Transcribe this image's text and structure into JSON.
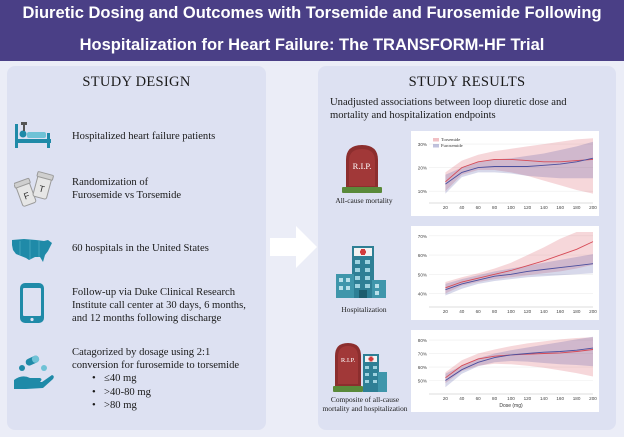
{
  "header": {
    "title_line1": "Diuretic Dosing and Outcomes with Torsemide and Furosemide Following",
    "title_line2": "Hospitalization for Heart Failure: The TRANSFORM-HF Trial"
  },
  "study_design": {
    "title": "STUDY DESIGN",
    "items": [
      {
        "icon": "hospital-bed-icon",
        "lines": [
          "Hospitalized heart failure patients"
        ]
      },
      {
        "icon": "pill-bottles-icon",
        "lines": [
          "Randomization of",
          "Furosemide vs Torsemide"
        ]
      },
      {
        "icon": "us-map-icon",
        "lines": [
          "60 hospitals in the United States"
        ]
      },
      {
        "icon": "smartphone-icon",
        "lines": [
          "Follow-up via Duke Clinical Research",
          "Institute call center at 30 days, 6 months,",
          "and 12 months following discharge"
        ]
      },
      {
        "icon": "hand-pills-icon",
        "lines": [
          "Catagorized by dosage using 2:1",
          "conversion for furosemide to torsemide"
        ]
      }
    ],
    "bullets": [
      "≤40 mg",
      ">40-80 mg",
      ">80 mg"
    ],
    "pill_labels": [
      "F",
      "T"
    ]
  },
  "study_results": {
    "title": "STUDY RESULTS",
    "subtitle_lines": [
      "Unadjusted associations between loop diuretic dose and",
      "mortality and hospitalization endpoints"
    ],
    "rip_text": "R.I.P.",
    "panel_labels": {
      "mortality": [
        "All-cause mortality"
      ],
      "hospitalization": [
        "Hospitalization"
      ],
      "composite": [
        "Composite of all-cause",
        "mortality and hospitalization"
      ]
    }
  },
  "colors": {
    "header_bg": "#4a3f86",
    "panel_bg": "#dde1f2",
    "torsemide": "#d64b57",
    "furosemide": "#4b4f9e",
    "icon_teal": "#1f8aa8"
  },
  "chart_data": [
    {
      "type": "line",
      "title": "All-cause mortality",
      "legend": [
        "Torsemide",
        "Furosemide"
      ],
      "legend_position": "top-left",
      "x": [
        20,
        40,
        60,
        80,
        100,
        120,
        140,
        160,
        180,
        200
      ],
      "xticks": [
        "20",
        "40",
        "60",
        "80",
        "100",
        "120",
        "140",
        "160",
        "180",
        "200"
      ],
      "xlim": [
        0,
        200
      ],
      "yticks": [
        "10%",
        "20%",
        "30%"
      ],
      "ylim": [
        5,
        33
      ],
      "series": [
        {
          "name": "Torsemide",
          "values": [
            14,
            20,
            22.5,
            23.5,
            23.5,
            23,
            22.5,
            22.5,
            23,
            23.5
          ],
          "lower": [
            10,
            17,
            19,
            19,
            18,
            16.5,
            14.5,
            12.5,
            10.5,
            9
          ],
          "upper": [
            18,
            23,
            25.5,
            27,
            28,
            29,
            30,
            31,
            32,
            32.5
          ]
        },
        {
          "name": "Furosemide",
          "values": [
            13,
            18,
            20,
            20.5,
            20.5,
            20.5,
            21,
            21.5,
            22.5,
            24
          ],
          "lower": [
            9,
            16,
            18,
            18,
            17.5,
            16.5,
            16,
            15.5,
            15.5,
            15.5
          ],
          "upper": [
            17,
            20,
            22.5,
            23.5,
            24,
            25,
            26,
            27.5,
            29,
            31
          ]
        }
      ]
    },
    {
      "type": "line",
      "title": "Hospitalization",
      "x": [
        20,
        40,
        60,
        80,
        100,
        120,
        140,
        160,
        180,
        200
      ],
      "xticks": [
        "20",
        "40",
        "60",
        "80",
        "100",
        "120",
        "140",
        "160",
        "180",
        "200"
      ],
      "xlim": [
        0,
        200
      ],
      "yticks": [
        "40%",
        "50%",
        "60%",
        "70%"
      ],
      "ylim": [
        33,
        72
      ],
      "series": [
        {
          "name": "Torsemide",
          "values": [
            43,
            46,
            48,
            50,
            52,
            54.5,
            57,
            60,
            63,
            67
          ],
          "lower": [
            40,
            44,
            46,
            47.5,
            48.5,
            49.5,
            50.5,
            51.5,
            53,
            55
          ],
          "upper": [
            46,
            48.5,
            50.5,
            53,
            56,
            60,
            64,
            68.5,
            72,
            72
          ]
        },
        {
          "name": "Furosemide",
          "values": [
            42,
            45,
            47,
            49,
            50,
            51.5,
            52.5,
            53.5,
            54.5,
            55.5
          ],
          "lower": [
            39,
            42.5,
            45,
            46.5,
            47.5,
            48.5,
            49,
            49.5,
            50,
            50.5
          ],
          "upper": [
            45,
            47.5,
            49.5,
            51.5,
            53,
            54.5,
            56,
            57.5,
            59,
            60.5
          ]
        }
      ]
    },
    {
      "type": "line",
      "title": "Composite of all-cause mortality and hospitalization",
      "x": [
        20,
        40,
        60,
        80,
        100,
        120,
        140,
        160,
        180,
        200
      ],
      "xticks": [
        "20",
        "40",
        "60",
        "80",
        "100",
        "120",
        "140",
        "160",
        "180",
        "200"
      ],
      "xlabel": "Dose (mg)",
      "xlim": [
        0,
        200
      ],
      "yticks": [
        "50%",
        "60%",
        "70%",
        "80%"
      ],
      "ylim": [
        40,
        83
      ],
      "series": [
        {
          "name": "Torsemide",
          "values": [
            52,
            61,
            66,
            68,
            69,
            69.5,
            70,
            70.5,
            71.5,
            73
          ],
          "lower": [
            48,
            57,
            61,
            62.5,
            62,
            61,
            59.5,
            57.5,
            55.5,
            53
          ],
          "upper": [
            56,
            65,
            70,
            73,
            75.5,
            77.5,
            79,
            80.5,
            81.5,
            82
          ]
        },
        {
          "name": "Furosemide",
          "values": [
            50,
            58,
            63.5,
            67,
            69,
            70,
            71,
            71.5,
            72.5,
            74
          ],
          "lower": [
            45,
            55,
            60.5,
            63.5,
            64.5,
            64,
            63,
            62,
            61.5,
            60.5
          ],
          "upper": [
            55,
            61,
            66.5,
            70,
            72.5,
            74.5,
            76.5,
            78.5,
            80.5,
            82.5
          ]
        }
      ]
    }
  ]
}
